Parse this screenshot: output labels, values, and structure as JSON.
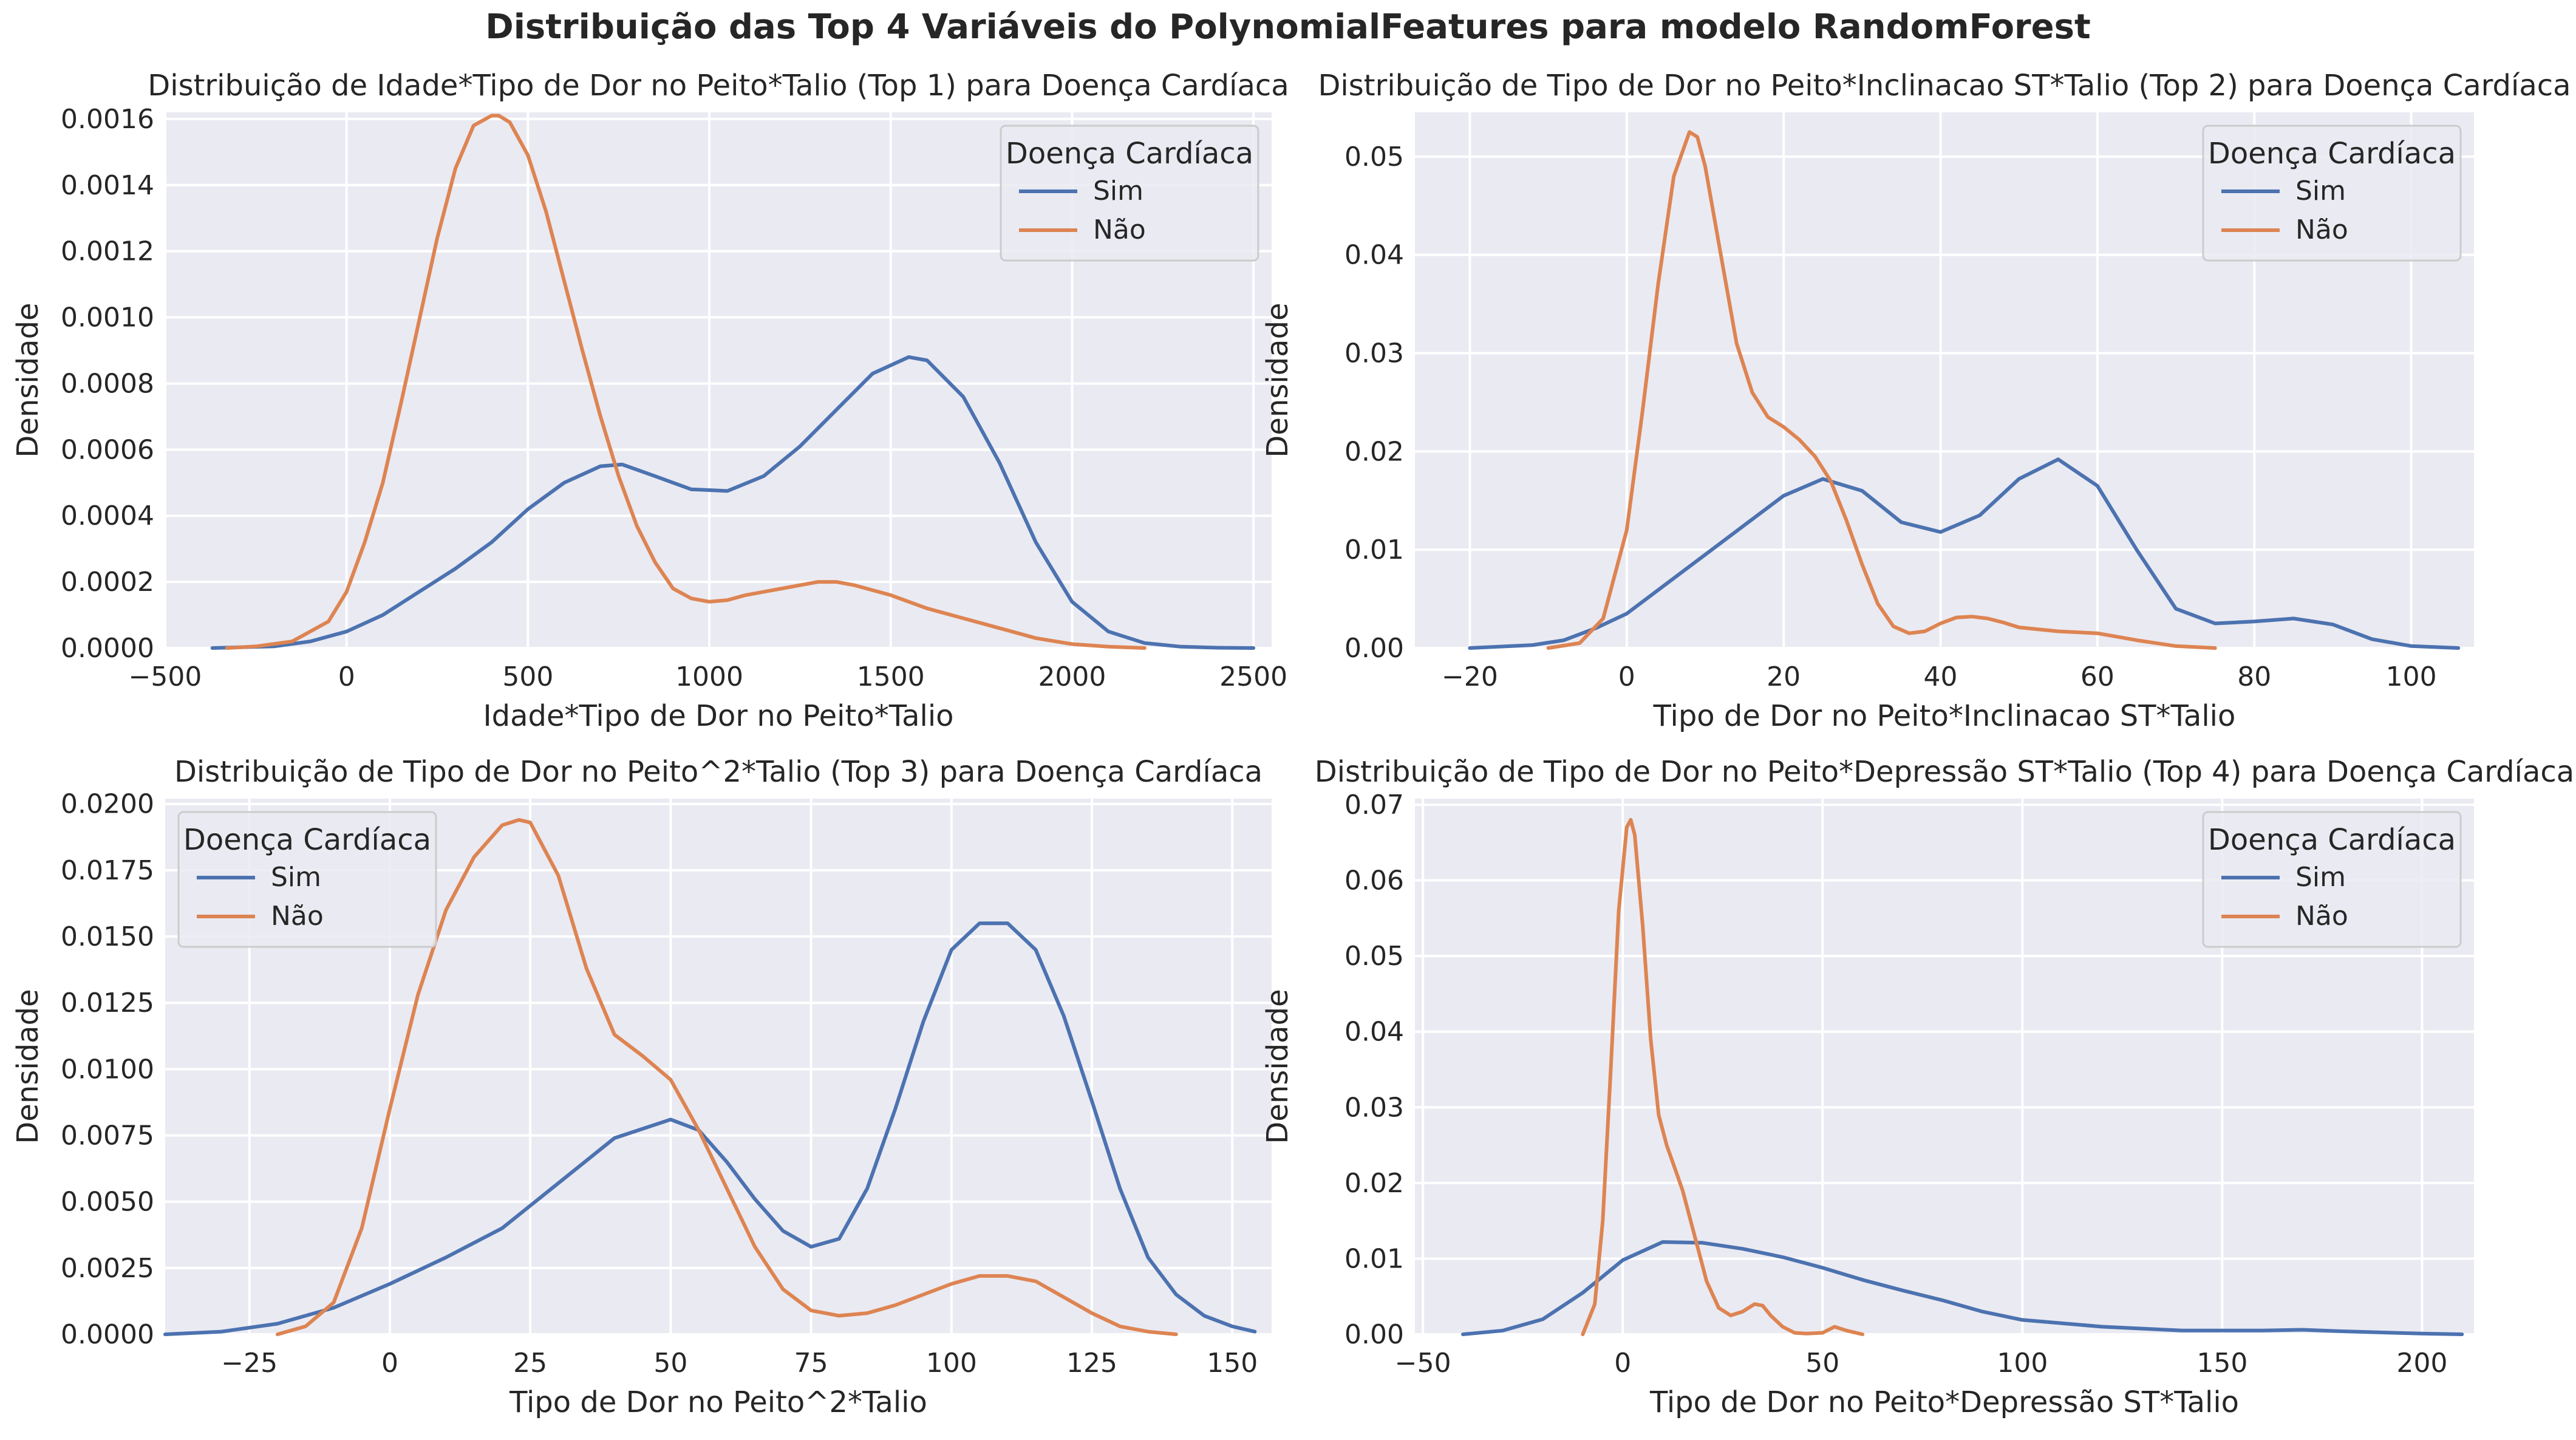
{
  "figure": {
    "suptitle": "Distribuição das Top 4 Variáveis do PolynomialFeatures para modelo RandomForest"
  },
  "style": {
    "plot_background": "#eaeaf2",
    "grid_color": "#ffffff",
    "sim_color": "#4c72b0",
    "nao_color": "#dd8452"
  },
  "chart_data": [
    {
      "type": "line",
      "title": "Distribuição de Idade*Tipo de Dor no Peito*Talio (Top 1) para Doença Cardíaca",
      "xlabel": "Idade*Tipo de Dor no Peito*Talio",
      "ylabel": "Densidade",
      "xlim": [
        -500,
        2550
      ],
      "ylim": [
        0,
        0.00162
      ],
      "xticks": [
        -500,
        0,
        500,
        1000,
        1500,
        2000,
        2500
      ],
      "xtick_labels": [
        "−500",
        "0",
        "500",
        "1000",
        "1500",
        "2000",
        "2500"
      ],
      "yticks": [
        0,
        0.0002,
        0.0004,
        0.0006,
        0.0008,
        0.001,
        0.0012,
        0.0014,
        0.0016
      ],
      "ytick_labels": [
        "0.0000",
        "0.0002",
        "0.0004",
        "0.0006",
        "0.0008",
        "0.0010",
        "0.0012",
        "0.0014",
        "0.0016"
      ],
      "grid": true,
      "legend": {
        "title": "Doença Cardíaca",
        "position": "top-right",
        "entries": [
          "Sim",
          "Não"
        ]
      },
      "series": [
        {
          "name": "Sim",
          "color": "#4c72b0",
          "x": [
            -370,
            -200,
            -100,
            0,
            100,
            200,
            300,
            400,
            500,
            600,
            700,
            760,
            850,
            950,
            1050,
            1150,
            1250,
            1350,
            1450,
            1550,
            1600,
            1700,
            1800,
            1900,
            2000,
            2100,
            2200,
            2300,
            2400,
            2500
          ],
          "y": [
            0,
            5e-06,
            2e-05,
            5e-05,
            0.0001,
            0.00017,
            0.00024,
            0.00032,
            0.00042,
            0.0005,
            0.00055,
            0.000555,
            0.00052,
            0.00048,
            0.000475,
            0.00052,
            0.00061,
            0.00072,
            0.00083,
            0.00088,
            0.00087,
            0.00076,
            0.00056,
            0.00032,
            0.00014,
            5e-05,
            1.5e-05,
            4e-06,
            1e-06,
            0
          ]
        },
        {
          "name": "Não",
          "color": "#dd8452",
          "x": [
            -330,
            -250,
            -150,
            -50,
            0,
            50,
            100,
            150,
            200,
            250,
            300,
            350,
            400,
            420,
            450,
            500,
            550,
            600,
            650,
            700,
            750,
            800,
            850,
            900,
            950,
            1000,
            1050,
            1100,
            1200,
            1300,
            1350,
            1400,
            1500,
            1600,
            1700,
            1800,
            1900,
            2000,
            2100,
            2200
          ],
          "y": [
            0,
            5e-06,
            2e-05,
            8e-05,
            0.00017,
            0.00032,
            0.0005,
            0.00074,
            0.00099,
            0.00124,
            0.00145,
            0.00158,
            0.00161,
            0.00161,
            0.00159,
            0.00149,
            0.00132,
            0.00111,
            0.0009,
            0.0007,
            0.00052,
            0.00037,
            0.00026,
            0.00018,
            0.00015,
            0.00014,
            0.000145,
            0.00016,
            0.00018,
            0.0002,
            0.0002,
            0.00019,
            0.00016,
            0.00012,
            9e-05,
            6e-05,
            3e-05,
            1.2e-05,
            4e-06,
            0
          ]
        }
      ]
    },
    {
      "type": "line",
      "title": "Distribuição de Tipo de Dor no Peito*Inclinacao ST*Talio (Top 2) para Doença Cardíaca",
      "xlabel": "Tipo de Dor no Peito*Inclinacao ST*Talio",
      "ylabel": "Densidade",
      "xlim": [
        -27,
        108
      ],
      "ylim": [
        0,
        0.0545
      ],
      "xticks": [
        -20,
        0,
        20,
        40,
        60,
        80,
        100
      ],
      "xtick_labels": [
        "−20",
        "0",
        "20",
        "40",
        "60",
        "80",
        "100"
      ],
      "yticks": [
        0,
        0.01,
        0.02,
        0.03,
        0.04,
        0.05
      ],
      "ytick_labels": [
        "0.00",
        "0.01",
        "0.02",
        "0.03",
        "0.04",
        "0.05"
      ],
      "grid": true,
      "legend": {
        "title": "Doença Cardíaca",
        "position": "top-right",
        "entries": [
          "Sim",
          "Não"
        ]
      },
      "series": [
        {
          "name": "Sim",
          "color": "#4c72b0",
          "x": [
            -20,
            -12,
            -8,
            -4,
            0,
            5,
            10,
            15,
            20,
            25,
            30,
            35,
            40,
            45,
            50,
            55,
            60,
            65,
            70,
            75,
            80,
            85,
            90,
            95,
            100,
            106
          ],
          "y": [
            0,
            0.0003,
            0.0008,
            0.002,
            0.0035,
            0.0065,
            0.0095,
            0.0125,
            0.0155,
            0.0172,
            0.016,
            0.0128,
            0.0118,
            0.0135,
            0.0172,
            0.0192,
            0.0165,
            0.01,
            0.004,
            0.0025,
            0.0027,
            0.003,
            0.0024,
            0.0009,
            0.0002,
            0
          ]
        },
        {
          "name": "Não",
          "color": "#dd8452",
          "x": [
            -10,
            -6,
            -3,
            0,
            2,
            4,
            6,
            8,
            9,
            10,
            12,
            14,
            16,
            18,
            20,
            22,
            24,
            26,
            28,
            30,
            32,
            34,
            36,
            38,
            40,
            42,
            44,
            46,
            48,
            50,
            55,
            60,
            65,
            70,
            75
          ],
          "y": [
            0,
            0.0005,
            0.003,
            0.012,
            0.024,
            0.037,
            0.048,
            0.0525,
            0.052,
            0.049,
            0.04,
            0.031,
            0.026,
            0.0235,
            0.0225,
            0.0212,
            0.0195,
            0.017,
            0.013,
            0.0085,
            0.0045,
            0.0022,
            0.0015,
            0.0017,
            0.0025,
            0.0031,
            0.0032,
            0.003,
            0.0026,
            0.0021,
            0.0017,
            0.0015,
            0.0008,
            0.0002,
            0
          ]
        }
      ]
    },
    {
      "type": "line",
      "title": "Distribuição de Tipo de Dor no Peito^2*Talio (Top 3) para Doença Cardíaca",
      "xlabel": "Tipo de Dor no Peito^2*Talio",
      "ylabel": "Densidade",
      "xlim": [
        -40,
        157
      ],
      "ylim": [
        0,
        0.0202
      ],
      "xticks": [
        -25,
        0,
        25,
        50,
        75,
        100,
        125,
        150
      ],
      "xtick_labels": [
        "−25",
        "0",
        "25",
        "50",
        "75",
        "100",
        "125",
        "150"
      ],
      "yticks": [
        0,
        0.0025,
        0.005,
        0.0075,
        0.01,
        0.0125,
        0.015,
        0.0175,
        0.02
      ],
      "ytick_labels": [
        "0.0000",
        "0.0025",
        "0.0050",
        "0.0075",
        "0.0100",
        "0.0125",
        "0.0150",
        "0.0175",
        "0.0200"
      ],
      "grid": true,
      "legend": {
        "title": "Doença Cardíaca",
        "position": "top-left",
        "entries": [
          "Sim",
          "Não"
        ]
      },
      "series": [
        {
          "name": "Sim",
          "color": "#4c72b0",
          "x": [
            -40,
            -30,
            -20,
            -10,
            0,
            10,
            20,
            30,
            40,
            50,
            55,
            60,
            65,
            70,
            75,
            80,
            85,
            90,
            95,
            100,
            105,
            110,
            115,
            120,
            125,
            130,
            135,
            140,
            145,
            150,
            154
          ],
          "y": [
            0,
            0.0001,
            0.0004,
            0.001,
            0.0019,
            0.0029,
            0.004,
            0.0057,
            0.0074,
            0.0081,
            0.0077,
            0.0065,
            0.0051,
            0.0039,
            0.0033,
            0.0036,
            0.0055,
            0.0085,
            0.0118,
            0.0145,
            0.0155,
            0.0155,
            0.0145,
            0.012,
            0.0088,
            0.0055,
            0.0029,
            0.0015,
            0.0007,
            0.0003,
            0.0001
          ]
        },
        {
          "name": "Não",
          "color": "#dd8452",
          "x": [
            -20,
            -15,
            -10,
            -5,
            0,
            5,
            10,
            15,
            20,
            23,
            25,
            30,
            35,
            40,
            45,
            50,
            55,
            60,
            65,
            70,
            75,
            80,
            85,
            90,
            95,
            100,
            105,
            110,
            115,
            120,
            125,
            130,
            135,
            140
          ],
          "y": [
            0,
            0.0003,
            0.0012,
            0.004,
            0.0085,
            0.0128,
            0.016,
            0.018,
            0.0192,
            0.0194,
            0.0193,
            0.0173,
            0.0138,
            0.0113,
            0.0105,
            0.0096,
            0.0077,
            0.0055,
            0.0033,
            0.0017,
            0.0009,
            0.0007,
            0.0008,
            0.0011,
            0.0015,
            0.0019,
            0.0022,
            0.0022,
            0.002,
            0.0014,
            0.0008,
            0.0003,
            0.0001,
            0
          ]
        }
      ]
    },
    {
      "type": "line",
      "title": "Distribuição de Tipo de Dor no Peito*Depressão ST*Talio (Top 4) para Doença Cardíaca",
      "xlabel": "Tipo de Dor no Peito*Depressão ST*Talio",
      "ylabel": "Densidade",
      "xlim": [
        -52,
        213
      ],
      "ylim": [
        0,
        0.0708
      ],
      "xticks": [
        -50,
        0,
        50,
        100,
        150,
        200
      ],
      "xtick_labels": [
        "−50",
        "0",
        "50",
        "100",
        "150",
        "200"
      ],
      "yticks": [
        0,
        0.01,
        0.02,
        0.03,
        0.04,
        0.05,
        0.06,
        0.07
      ],
      "ytick_labels": [
        "0.00",
        "0.01",
        "0.02",
        "0.03",
        "0.04",
        "0.05",
        "0.06",
        "0.07"
      ],
      "grid": true,
      "legend": {
        "title": "Doença Cardíaca",
        "position": "top-right",
        "entries": [
          "Sim",
          "Não"
        ]
      },
      "series": [
        {
          "name": "Sim",
          "color": "#4c72b0",
          "x": [
            -40,
            -30,
            -20,
            -10,
            0,
            10,
            20,
            30,
            40,
            50,
            60,
            70,
            80,
            90,
            100,
            120,
            140,
            160,
            170,
            180,
            200,
            210
          ],
          "y": [
            0,
            0.0005,
            0.002,
            0.0055,
            0.0098,
            0.0122,
            0.0121,
            0.0113,
            0.0102,
            0.0088,
            0.0072,
            0.0058,
            0.0045,
            0.003,
            0.0019,
            0.001,
            0.0005,
            0.0005,
            0.0006,
            0.0004,
            0.0001,
            0
          ]
        },
        {
          "name": "Não",
          "color": "#dd8452",
          "x": [
            -10,
            -7,
            -5,
            -3,
            -1,
            1,
            2,
            3,
            5,
            7,
            9,
            11,
            13,
            15,
            18,
            21,
            24,
            27,
            30,
            33,
            35,
            37,
            40,
            43,
            46,
            50,
            53,
            56,
            60
          ],
          "y": [
            0,
            0.004,
            0.015,
            0.035,
            0.056,
            0.067,
            0.068,
            0.066,
            0.054,
            0.039,
            0.029,
            0.025,
            0.022,
            0.019,
            0.013,
            0.007,
            0.0035,
            0.0025,
            0.003,
            0.004,
            0.0038,
            0.0025,
            0.001,
            0.0002,
            0.0001,
            0.0002,
            0.001,
            0.0005,
            0
          ]
        }
      ]
    }
  ]
}
